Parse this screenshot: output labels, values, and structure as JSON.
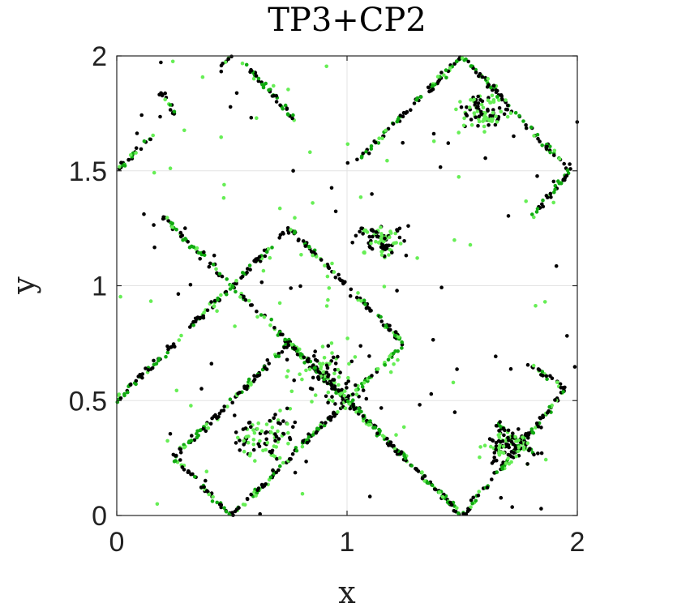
{
  "chart_data": {
    "type": "scatter",
    "title": "TP3+CP2",
    "xlabel": "x",
    "ylabel": "y",
    "xlim": [
      0,
      2
    ],
    "ylim": [
      0,
      2
    ],
    "xticks": [
      0,
      1,
      2
    ],
    "yticks": [
      0,
      0.5,
      1,
      1.5,
      2
    ],
    "xtick_labels": [
      "0",
      "1",
      "2"
    ],
    "ytick_labels": [
      "0",
      "0.5",
      "1",
      "1.5",
      "2"
    ],
    "grid": true,
    "legend": "none",
    "colors": {
      "series_a": "#000000",
      "series_b": "#66ee55",
      "series_c": "#11aa11"
    },
    "line_segments": [
      {
        "from": [
          0.2,
          1.3
        ],
        "to": [
          1.5,
          0.0
        ]
      },
      {
        "from": [
          0.25,
          0.25
        ],
        "to": [
          0.5,
          0.0
        ]
      },
      {
        "from": [
          0.25,
          0.25
        ],
        "to": [
          0.75,
          0.75
        ]
      },
      {
        "from": [
          0.5,
          0.0
        ],
        "to": [
          1.25,
          0.75
        ]
      },
      {
        "from": [
          0.75,
          0.75
        ],
        "to": [
          1.25,
          0.25
        ]
      },
      {
        "from": [
          0.0,
          0.5
        ],
        "to": [
          0.75,
          1.25
        ]
      },
      {
        "from": [
          0.75,
          1.25
        ],
        "to": [
          1.0,
          1.0
        ]
      },
      {
        "from": [
          1.0,
          1.0
        ],
        "to": [
          1.25,
          0.75
        ]
      },
      {
        "from": [
          1.5,
          0.0
        ],
        "to": [
          1.95,
          0.55
        ]
      },
      {
        "from": [
          1.8,
          0.65
        ],
        "to": [
          1.95,
          0.55
        ]
      },
      {
        "from": [
          1.05,
          1.55
        ],
        "to": [
          1.5,
          2.0
        ]
      },
      {
        "from": [
          1.5,
          2.0
        ],
        "to": [
          1.97,
          1.5
        ]
      },
      {
        "from": [
          1.8,
          1.3
        ],
        "to": [
          1.97,
          1.5
        ]
      },
      {
        "from": [
          0.0,
          1.5
        ],
        "to": [
          0.15,
          1.65
        ]
      },
      {
        "from": [
          0.55,
          1.97
        ],
        "to": [
          0.78,
          1.72
        ]
      },
      {
        "from": [
          0.18,
          1.85
        ],
        "to": [
          0.25,
          1.75
        ]
      },
      {
        "from": [
          0.45,
          1.95
        ],
        "to": [
          0.5,
          2.0
        ]
      },
      {
        "from": [
          1.65,
          0.4
        ],
        "to": [
          1.85,
          0.25
        ]
      }
    ],
    "scatter_regions": [
      {
        "center": [
          0.95,
          0.6
        ],
        "spread": [
          0.35,
          0.3
        ]
      },
      {
        "center": [
          0.65,
          0.35
        ],
        "spread": [
          0.25,
          0.2
        ]
      },
      {
        "center": [
          1.6,
          1.75
        ],
        "spread": [
          0.2,
          0.15
        ]
      },
      {
        "center": [
          1.7,
          0.3
        ],
        "spread": [
          0.2,
          0.15
        ]
      },
      {
        "center": [
          1.15,
          1.2
        ],
        "spread": [
          0.2,
          0.15
        ]
      }
    ]
  }
}
